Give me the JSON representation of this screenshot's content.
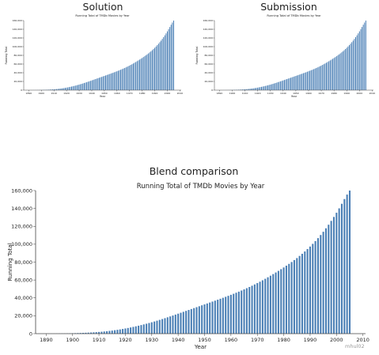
{
  "headers": {
    "solution": "Solution",
    "submission": "Submission",
    "blend": "Blend comparison"
  },
  "watermark": "mhul02",
  "colors": {
    "bar": "#4a7fb5",
    "axis": "#444444",
    "text": "#222222"
  },
  "chart_data": [
    {
      "id": "solution",
      "type": "bar",
      "title": "Running Total of TMDb Movies by Year",
      "xlabel": "Year",
      "ylabel": "Running Total",
      "x_ticks": [
        1890,
        1900,
        1910,
        1920,
        1930,
        1940,
        1950,
        1960,
        1970,
        1980,
        1990,
        2000,
        2010
      ],
      "y_ticks": [
        0,
        20000,
        40000,
        60000,
        80000,
        100000,
        120000,
        140000,
        160000
      ],
      "y_tick_labels": [
        "0",
        "20,000",
        "40,000",
        "60,000",
        "80,000",
        "100,000",
        "120,000",
        "140,000",
        "160,000"
      ],
      "ylim": [
        0,
        160000
      ],
      "xlim": [
        1886,
        2011
      ],
      "x_start": 1887,
      "values": [
        5,
        15,
        30,
        45,
        60,
        80,
        100,
        130,
        160,
        200,
        250,
        310,
        380,
        460,
        550,
        650,
        760,
        880,
        1000,
        1150,
        1310,
        1490,
        1690,
        1910,
        2160,
        2440,
        2750,
        3090,
        3460,
        3860,
        4290,
        4760,
        5260,
        5790,
        6350,
        6940,
        7560,
        8210,
        8890,
        9600,
        10340,
        11110,
        11910,
        12740,
        13600,
        14490,
        15400,
        16340,
        17300,
        18280,
        19280,
        20290,
        21310,
        22340,
        23370,
        24410,
        25450,
        26490,
        27530,
        28570,
        29600,
        30640,
        31680,
        32720,
        33760,
        34800,
        35850,
        36900,
        37960,
        39030,
        40100,
        41190,
        42300,
        43430,
        44580,
        45760,
        46970,
        48220,
        49500,
        50820,
        52180,
        53590,
        55040,
        56540,
        58090,
        59690,
        61340,
        63040,
        64800,
        66600,
        68400,
        70200,
        72100,
        74000,
        76000,
        78000,
        80100,
        82300,
        84500,
        86900,
        89300,
        91900,
        94600,
        97400,
        100400,
        103500,
        106800,
        110300,
        113900,
        117800,
        121800,
        126100,
        130500,
        135200,
        140100,
        145200,
        150500,
        155500,
        160000
      ]
    },
    {
      "id": "submission",
      "type": "bar",
      "title": "Running Total of TMDb Movies by Year",
      "xlabel": "Year",
      "ylabel": "Running Total",
      "x_ticks": [
        1890,
        1900,
        1910,
        1920,
        1930,
        1940,
        1950,
        1960,
        1970,
        1980,
        1990,
        2000,
        2010
      ],
      "y_ticks": [
        0,
        20000,
        40000,
        60000,
        80000,
        100000,
        120000,
        140000,
        160000
      ],
      "y_tick_labels": [
        "0",
        "20,000",
        "40,000",
        "60,000",
        "80,000",
        "100,000",
        "120,000",
        "140,000",
        "160,000"
      ],
      "ylim": [
        0,
        160000
      ],
      "xlim": [
        1886,
        2011
      ],
      "x_start": 1887,
      "values": [
        5,
        15,
        30,
        45,
        60,
        80,
        100,
        130,
        160,
        200,
        250,
        310,
        380,
        460,
        550,
        650,
        760,
        880,
        1000,
        1150,
        1310,
        1490,
        1690,
        1910,
        2160,
        2440,
        2750,
        3090,
        3460,
        3860,
        4290,
        4760,
        5260,
        5790,
        6350,
        6940,
        7560,
        8210,
        8890,
        9600,
        10340,
        11110,
        11910,
        12740,
        13600,
        14490,
        15400,
        16340,
        17300,
        18280,
        19280,
        20290,
        21310,
        22340,
        23370,
        24410,
        25450,
        26490,
        27530,
        28570,
        29600,
        30640,
        31680,
        32720,
        33760,
        34800,
        35850,
        36900,
        37960,
        39030,
        40100,
        41190,
        42300,
        43430,
        44580,
        45760,
        46970,
        48220,
        49500,
        50820,
        52180,
        53590,
        55040,
        56540,
        58090,
        59690,
        61340,
        63040,
        64800,
        66600,
        68400,
        70200,
        72100,
        74000,
        76000,
        78000,
        80100,
        82300,
        84500,
        86900,
        89300,
        91900,
        94600,
        97400,
        100400,
        103500,
        106800,
        110300,
        113900,
        117800,
        121800,
        126100,
        130500,
        135200,
        140100,
        145200,
        150500,
        155500,
        160000
      ]
    },
    {
      "id": "blend",
      "type": "bar",
      "title": "Running Total of TMDb Movies by Year",
      "xlabel": "Year",
      "ylabel": "Running Total",
      "x_ticks": [
        1890,
        1900,
        1910,
        1920,
        1930,
        1940,
        1950,
        1960,
        1970,
        1980,
        1990,
        2000,
        2010
      ],
      "y_ticks": [
        0,
        20000,
        40000,
        60000,
        80000,
        100000,
        120000,
        140000,
        160000
      ],
      "y_tick_labels": [
        "0",
        "20,000",
        "40,000",
        "60,000",
        "80,000",
        "100,000",
        "120,000",
        "140,000",
        "160,000"
      ],
      "ylim": [
        0,
        160000
      ],
      "xlim": [
        1886,
        2011
      ],
      "x_start": 1887,
      "values": [
        5,
        15,
        30,
        45,
        60,
        80,
        100,
        130,
        160,
        200,
        250,
        310,
        380,
        460,
        550,
        650,
        760,
        880,
        1000,
        1150,
        1310,
        1490,
        1690,
        1910,
        2160,
        2440,
        2750,
        3090,
        3460,
        3860,
        4290,
        4760,
        5260,
        5790,
        6350,
        6940,
        7560,
        8210,
        8890,
        9600,
        10340,
        11110,
        11910,
        12740,
        13600,
        14490,
        15400,
        16340,
        17300,
        18280,
        19280,
        20290,
        21310,
        22340,
        23370,
        24410,
        25450,
        26490,
        27530,
        28570,
        29600,
        30640,
        31680,
        32720,
        33760,
        34800,
        35850,
        36900,
        37960,
        39030,
        40100,
        41190,
        42300,
        43430,
        44580,
        45760,
        46970,
        48220,
        49500,
        50820,
        52180,
        53590,
        55040,
        56540,
        58090,
        59690,
        61340,
        63040,
        64800,
        66600,
        68400,
        70200,
        72100,
        74000,
        76000,
        78000,
        80100,
        82300,
        84500,
        86900,
        89300,
        91900,
        94600,
        97400,
        100400,
        103500,
        106800,
        110300,
        113900,
        117800,
        121800,
        126100,
        130500,
        135200,
        140100,
        145200,
        150500,
        155500,
        160000
      ]
    }
  ]
}
